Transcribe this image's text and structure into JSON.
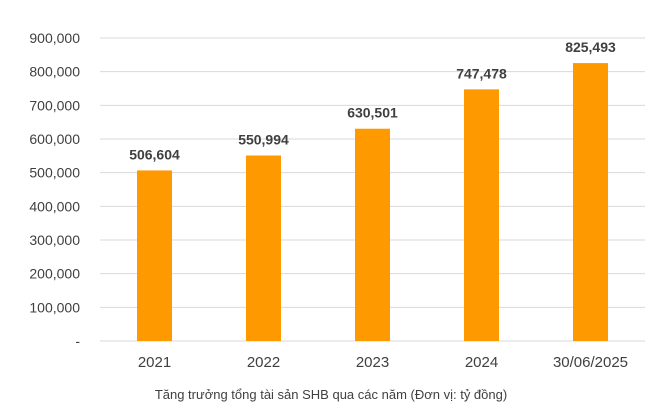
{
  "chart_data": {
    "type": "bar",
    "title": "",
    "caption": "Tăng trưởng tổng tài sản SHB qua các năm (Đơn vị: tỷ đồng)",
    "categories": [
      "2021",
      "2022",
      "2023",
      "2024",
      "30/06/2025"
    ],
    "values": [
      506604,
      550994,
      630501,
      747478,
      825493
    ],
    "data_labels": [
      "506,604",
      "550,994",
      "630,501",
      "747,478",
      "825,493"
    ],
    "y_ticks": [
      0,
      100000,
      200000,
      300000,
      400000,
      500000,
      600000,
      700000,
      800000,
      900000
    ],
    "y_tick_labels": [
      "-",
      "100,000",
      "200,000",
      "300,000",
      "400,000",
      "500,000",
      "600,000",
      "700,000",
      "800,000",
      "900,000"
    ],
    "ylim": [
      0,
      900000
    ],
    "grid": true,
    "legend": "none",
    "colors": {
      "bar": "#FF9900",
      "grid": "#D9D9D9",
      "text": "#404040",
      "label": "#404040"
    }
  }
}
